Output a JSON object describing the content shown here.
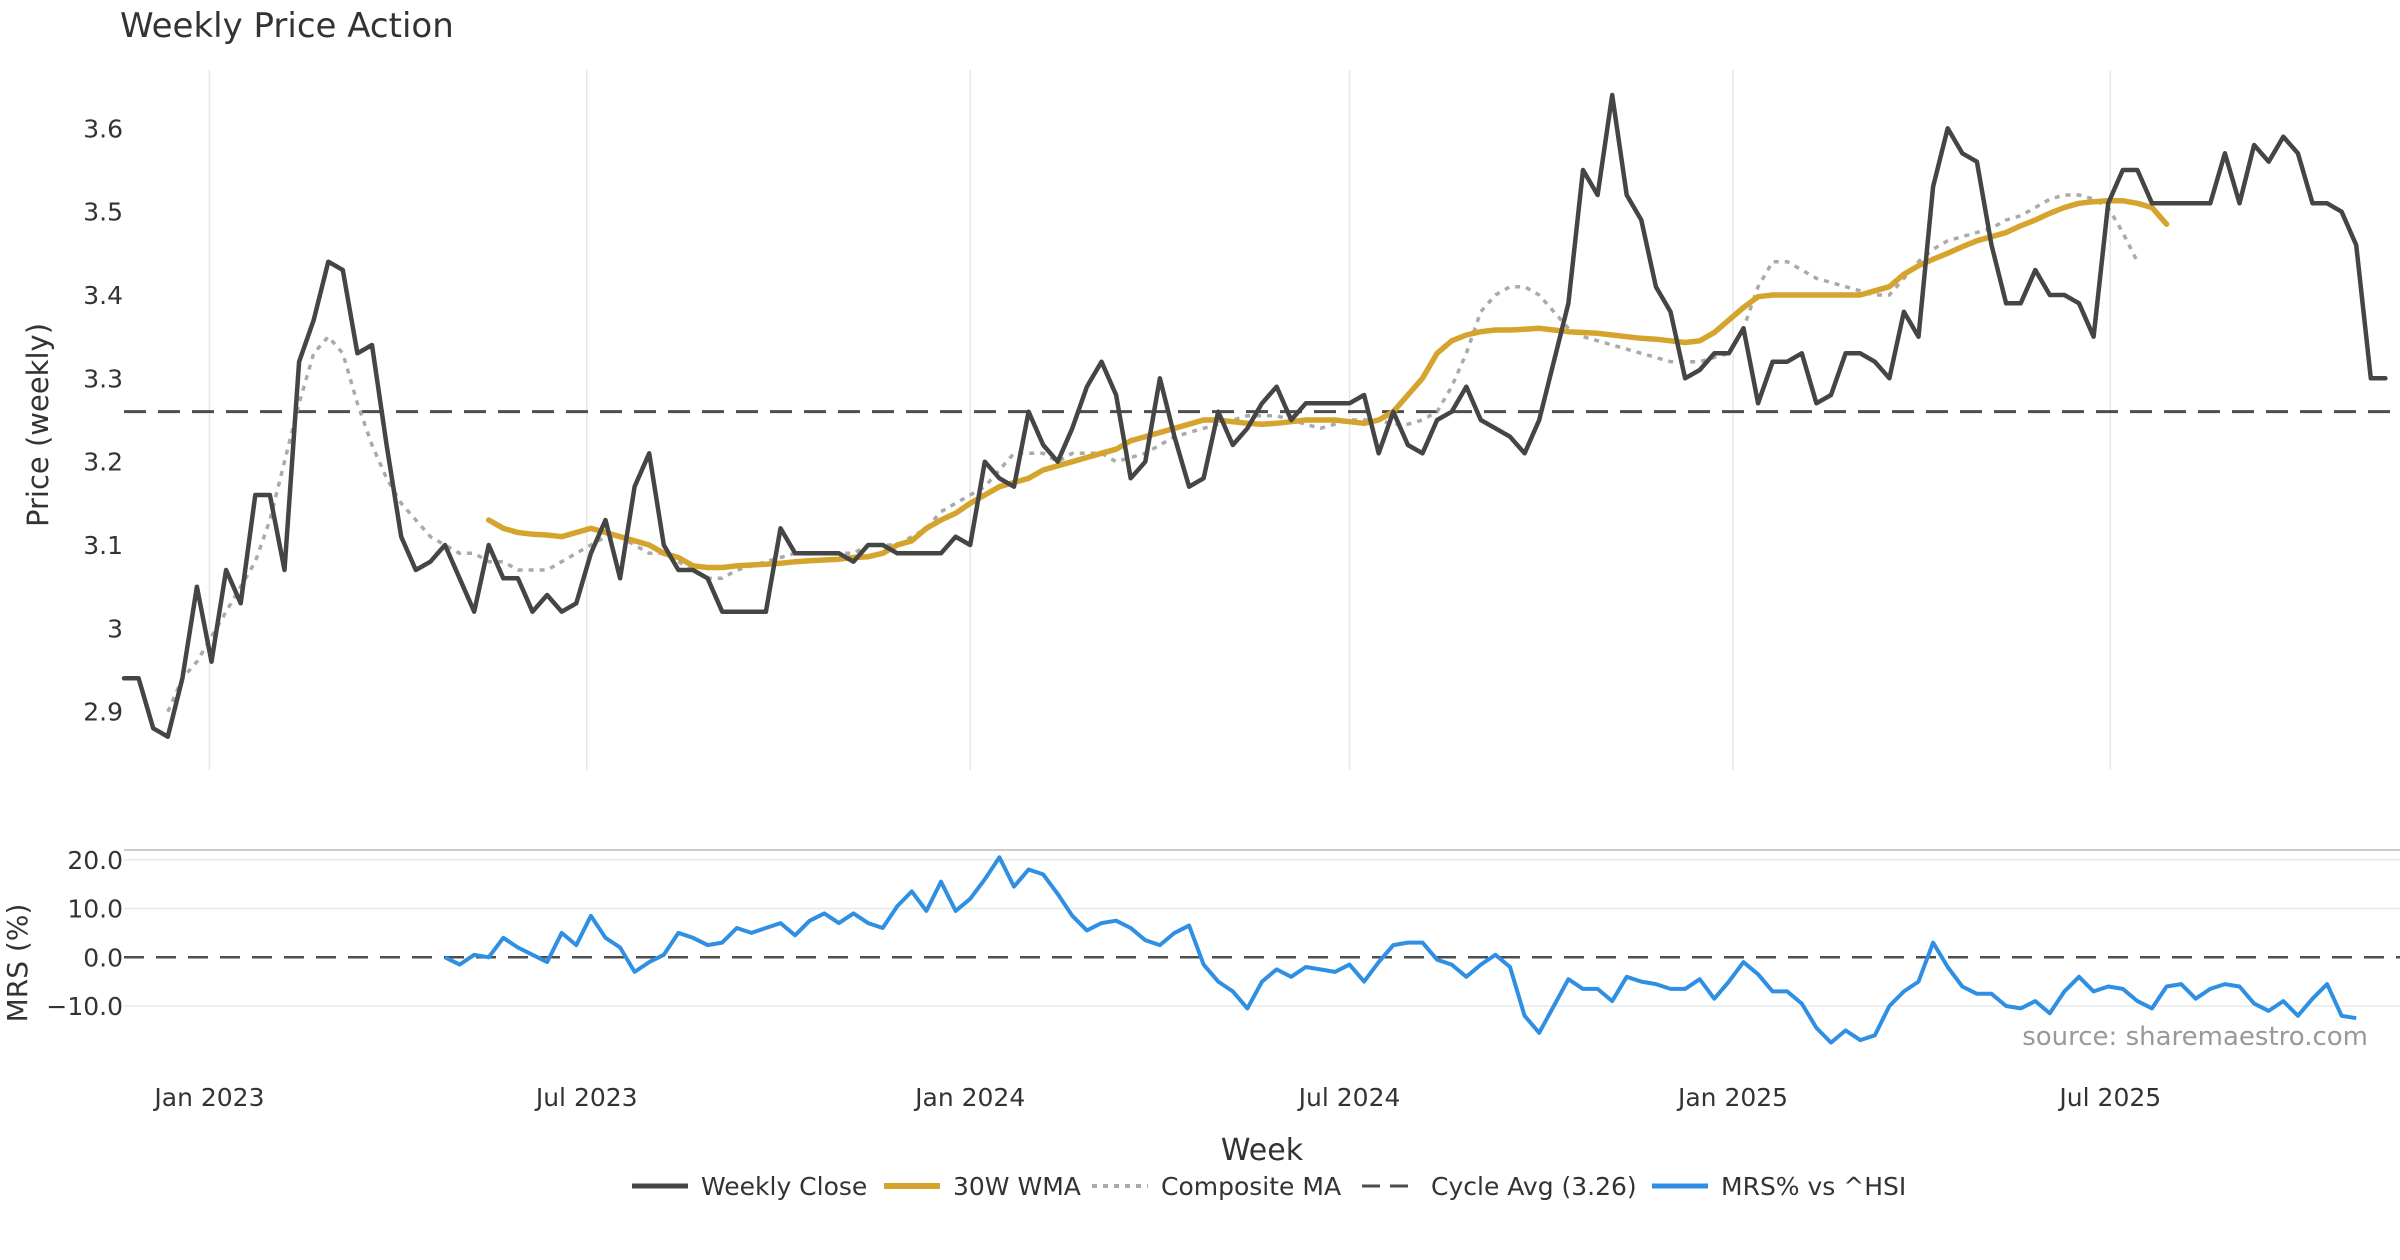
{
  "title": "Weekly Price Action",
  "source": "source: sharemaestro.com",
  "xlabel": "Week",
  "colors": {
    "close": "#454545",
    "wma": "#d4a42c",
    "composite": "#aaaaaa",
    "cycle": "#4d4d4d",
    "mrs": "#2e8fe3",
    "grid": "#e8e8e8"
  },
  "chart_data": [
    {
      "type": "line",
      "title": "Weekly Price Action",
      "ylabel": "Price (weekly)",
      "xlabel": "Week",
      "x_ticks": [
        "Jan 2023",
        "Jul 2023",
        "Jan 2024",
        "Jul 2024",
        "Jan 2025",
        "Jul 2025"
      ],
      "x_range": [
        "2022-11-21",
        "2025-11-17"
      ],
      "y_ticks": [
        "2.9",
        "3",
        "3.1",
        "3.2",
        "3.3",
        "3.4",
        "3.5",
        "3.6"
      ],
      "ylim": [
        2.83,
        3.67
      ],
      "grid": "vertical",
      "legend_position": "bottom",
      "hline": {
        "name": "Cycle Avg (3.26)",
        "value": 3.26
      },
      "series": [
        {
          "name": "Weekly Close",
          "start": "2022-11-21",
          "values": [
            2.94,
            2.94,
            2.88,
            2.87,
            2.94,
            3.05,
            2.96,
            3.07,
            3.03,
            3.16,
            3.16,
            3.07,
            3.32,
            3.37,
            3.44,
            3.43,
            3.33,
            3.34,
            3.22,
            3.11,
            3.07,
            3.08,
            3.1,
            3.06,
            3.02,
            3.1,
            3.06,
            3.06,
            3.02,
            3.04,
            3.02,
            3.03,
            3.09,
            3.13,
            3.06,
            3.17,
            3.21,
            3.1,
            3.07,
            3.07,
            3.06,
            3.02,
            3.02,
            3.02,
            3.02,
            3.12,
            3.09,
            3.09,
            3.09,
            3.09,
            3.08,
            3.1,
            3.1,
            3.09,
            3.09,
            3.09,
            3.09,
            3.11,
            3.1,
            3.2,
            3.18,
            3.17,
            3.26,
            3.22,
            3.2,
            3.24,
            3.29,
            3.32,
            3.28,
            3.18,
            3.2,
            3.3,
            3.23,
            3.17,
            3.18,
            3.26,
            3.22,
            3.24,
            3.27,
            3.29,
            3.25,
            3.27,
            3.27,
            3.27,
            3.27,
            3.28,
            3.21,
            3.26,
            3.22,
            3.21,
            3.25,
            3.26,
            3.29,
            3.25,
            3.24,
            3.23,
            3.21,
            3.25,
            3.32,
            3.39,
            3.55,
            3.52,
            3.64,
            3.52,
            3.49,
            3.41,
            3.38,
            3.3,
            3.31,
            3.33,
            3.33,
            3.36,
            3.27,
            3.32,
            3.32,
            3.33,
            3.27,
            3.28,
            3.33,
            3.33,
            3.32,
            3.3,
            3.38,
            3.35,
            3.53,
            3.6,
            3.57,
            3.56,
            3.46,
            3.39,
            3.39,
            3.43,
            3.4,
            3.4,
            3.39,
            3.35,
            3.51,
            3.55,
            3.55,
            3.51,
            3.51,
            3.51,
            3.51,
            3.51,
            3.57,
            3.51,
            3.58,
            3.56,
            3.59,
            3.57,
            3.51,
            3.51,
            3.5,
            3.46,
            3.3,
            3.3
          ]
        },
        {
          "name": "30W WMA",
          "start": "2023-05-15",
          "values": [
            3.13,
            3.12,
            3.115,
            3.113,
            3.112,
            3.11,
            3.115,
            3.12,
            3.115,
            3.11,
            3.105,
            3.1,
            3.09,
            3.085,
            3.075,
            3.073,
            3.073,
            3.075,
            3.076,
            3.077,
            3.078,
            3.08,
            3.081,
            3.082,
            3.083,
            3.085,
            3.086,
            3.09,
            3.1,
            3.105,
            3.12,
            3.13,
            3.138,
            3.15,
            3.16,
            3.17,
            3.175,
            3.18,
            3.19,
            3.195,
            3.2,
            3.205,
            3.21,
            3.215,
            3.225,
            3.23,
            3.235,
            3.24,
            3.245,
            3.25,
            3.25,
            3.248,
            3.246,
            3.245,
            3.246,
            3.248,
            3.25,
            3.25,
            3.25,
            3.248,
            3.246,
            3.25,
            3.26,
            3.28,
            3.3,
            3.33,
            3.345,
            3.352,
            3.356,
            3.358,
            3.358,
            3.359,
            3.36,
            3.358,
            3.356,
            3.355,
            3.354,
            3.352,
            3.35,
            3.348,
            3.347,
            3.345,
            3.343,
            3.345,
            3.355,
            3.37,
            3.385,
            3.398,
            3.4,
            3.4,
            3.4,
            3.4,
            3.4,
            3.4,
            3.4,
            3.405,
            3.41,
            3.425,
            3.435,
            3.443,
            3.45,
            3.458,
            3.465,
            3.47,
            3.475,
            3.483,
            3.49,
            3.498,
            3.505,
            3.51,
            3.512,
            3.513,
            3.513,
            3.51,
            3.505,
            3.485
          ]
        },
        {
          "name": "Composite MA",
          "start": "2022-12-12",
          "values": [
            2.9,
            2.94,
            2.96,
            2.99,
            3.02,
            3.05,
            3.08,
            3.13,
            3.2,
            3.27,
            3.33,
            3.35,
            3.33,
            3.27,
            3.22,
            3.18,
            3.15,
            3.13,
            3.11,
            3.1,
            3.09,
            3.09,
            3.08,
            3.08,
            3.07,
            3.07,
            3.07,
            3.08,
            3.09,
            3.1,
            3.11,
            3.11,
            3.1,
            3.09,
            3.09,
            3.08,
            3.07,
            3.06,
            3.06,
            3.07,
            3.075,
            3.08,
            3.085,
            3.09,
            3.09,
            3.09,
            3.09,
            3.09,
            3.1,
            3.1,
            3.1,
            3.11,
            3.12,
            3.14,
            3.15,
            3.16,
            3.17,
            3.19,
            3.21,
            3.21,
            3.21,
            3.2,
            3.21,
            3.21,
            3.21,
            3.2,
            3.205,
            3.21,
            3.22,
            3.23,
            3.235,
            3.24,
            3.245,
            3.25,
            3.255,
            3.255,
            3.255,
            3.25,
            3.245,
            3.24,
            3.245,
            3.25,
            3.25,
            3.25,
            3.245,
            3.245,
            3.25,
            3.26,
            3.29,
            3.33,
            3.38,
            3.4,
            3.41,
            3.41,
            3.4,
            3.38,
            3.36,
            3.35,
            3.345,
            3.34,
            3.335,
            3.33,
            3.325,
            3.32,
            3.32,
            3.32,
            3.325,
            3.33,
            3.36,
            3.41,
            3.44,
            3.44,
            3.43,
            3.42,
            3.415,
            3.41,
            3.405,
            3.4,
            3.4,
            3.42,
            3.44,
            3.455,
            3.465,
            3.47,
            3.475,
            3.48,
            3.49,
            3.495,
            3.505,
            3.515,
            3.52,
            3.52,
            3.515,
            3.505,
            3.475,
            3.44
          ]
        }
      ]
    },
    {
      "type": "line",
      "ylabel": "MRS (%)",
      "x_ticks": [
        "Jan 2023",
        "Jul 2023",
        "Jan 2024",
        "Jul 2024",
        "Jan 2025",
        "Jul 2025"
      ],
      "x_range": [
        "2022-11-21",
        "2025-11-17"
      ],
      "y_ticks": [
        "20.0",
        "10.0",
        "0.0",
        "−10.0"
      ],
      "ylim": [
        -18,
        22
      ],
      "hline": {
        "value": 0
      },
      "series": [
        {
          "name": "MRS% vs ^HSI",
          "start": "2023-04-24",
          "values": [
            0,
            -1.5,
            0.5,
            0,
            4,
            2,
            0.5,
            -1,
            5,
            2.5,
            8.5,
            4,
            2,
            -3,
            -1,
            0.5,
            5,
            4,
            2.5,
            3,
            6,
            5,
            6,
            7,
            4.5,
            7.5,
            9,
            7,
            9,
            7,
            6,
            10.5,
            13.5,
            9.5,
            15.5,
            9.5,
            12,
            16,
            20.5,
            14.5,
            18,
            17,
            13,
            8.5,
            5.5,
            7,
            7.5,
            6,
            3.5,
            2.5,
            5,
            6.5,
            -1.5,
            -5,
            -7,
            -10.5,
            -5,
            -2.5,
            -4,
            -2,
            -2.5,
            -3,
            -1.5,
            -5,
            -1,
            2.5,
            3,
            3,
            -0.5,
            -1.5,
            -4,
            -1.5,
            0.5,
            -2,
            -12,
            -15.5,
            -10,
            -4.5,
            -6.5,
            -6.5,
            -9,
            -4,
            -5,
            -5.5,
            -6.5,
            -6.5,
            -4.5,
            -8.5,
            -5,
            -1,
            -3.5,
            -7,
            -7,
            -9.5,
            -14.5,
            -17.5,
            -15,
            -17,
            -16,
            -10,
            -7,
            -5,
            3,
            -2,
            -6,
            -7.5,
            -7.5,
            -10,
            -10.5,
            -9,
            -11.5,
            -7,
            -4,
            -7,
            -6,
            -6.5,
            -9,
            -10.5,
            -6,
            -5.5,
            -8.5,
            -6.5,
            -5.5,
            -6,
            -9.5,
            -11,
            -9,
            -12,
            -8.5,
            -5.5,
            -12,
            -12.5
          ]
        }
      ]
    }
  ],
  "legend": [
    {
      "label": "Weekly Close",
      "style": "close"
    },
    {
      "label": "30W WMA",
      "style": "wma"
    },
    {
      "label": "Composite MA",
      "style": "composite"
    },
    {
      "label": "Cycle Avg (3.26)",
      "style": "cycle"
    },
    {
      "label": "MRS% vs ^HSI",
      "style": "mrs"
    }
  ]
}
